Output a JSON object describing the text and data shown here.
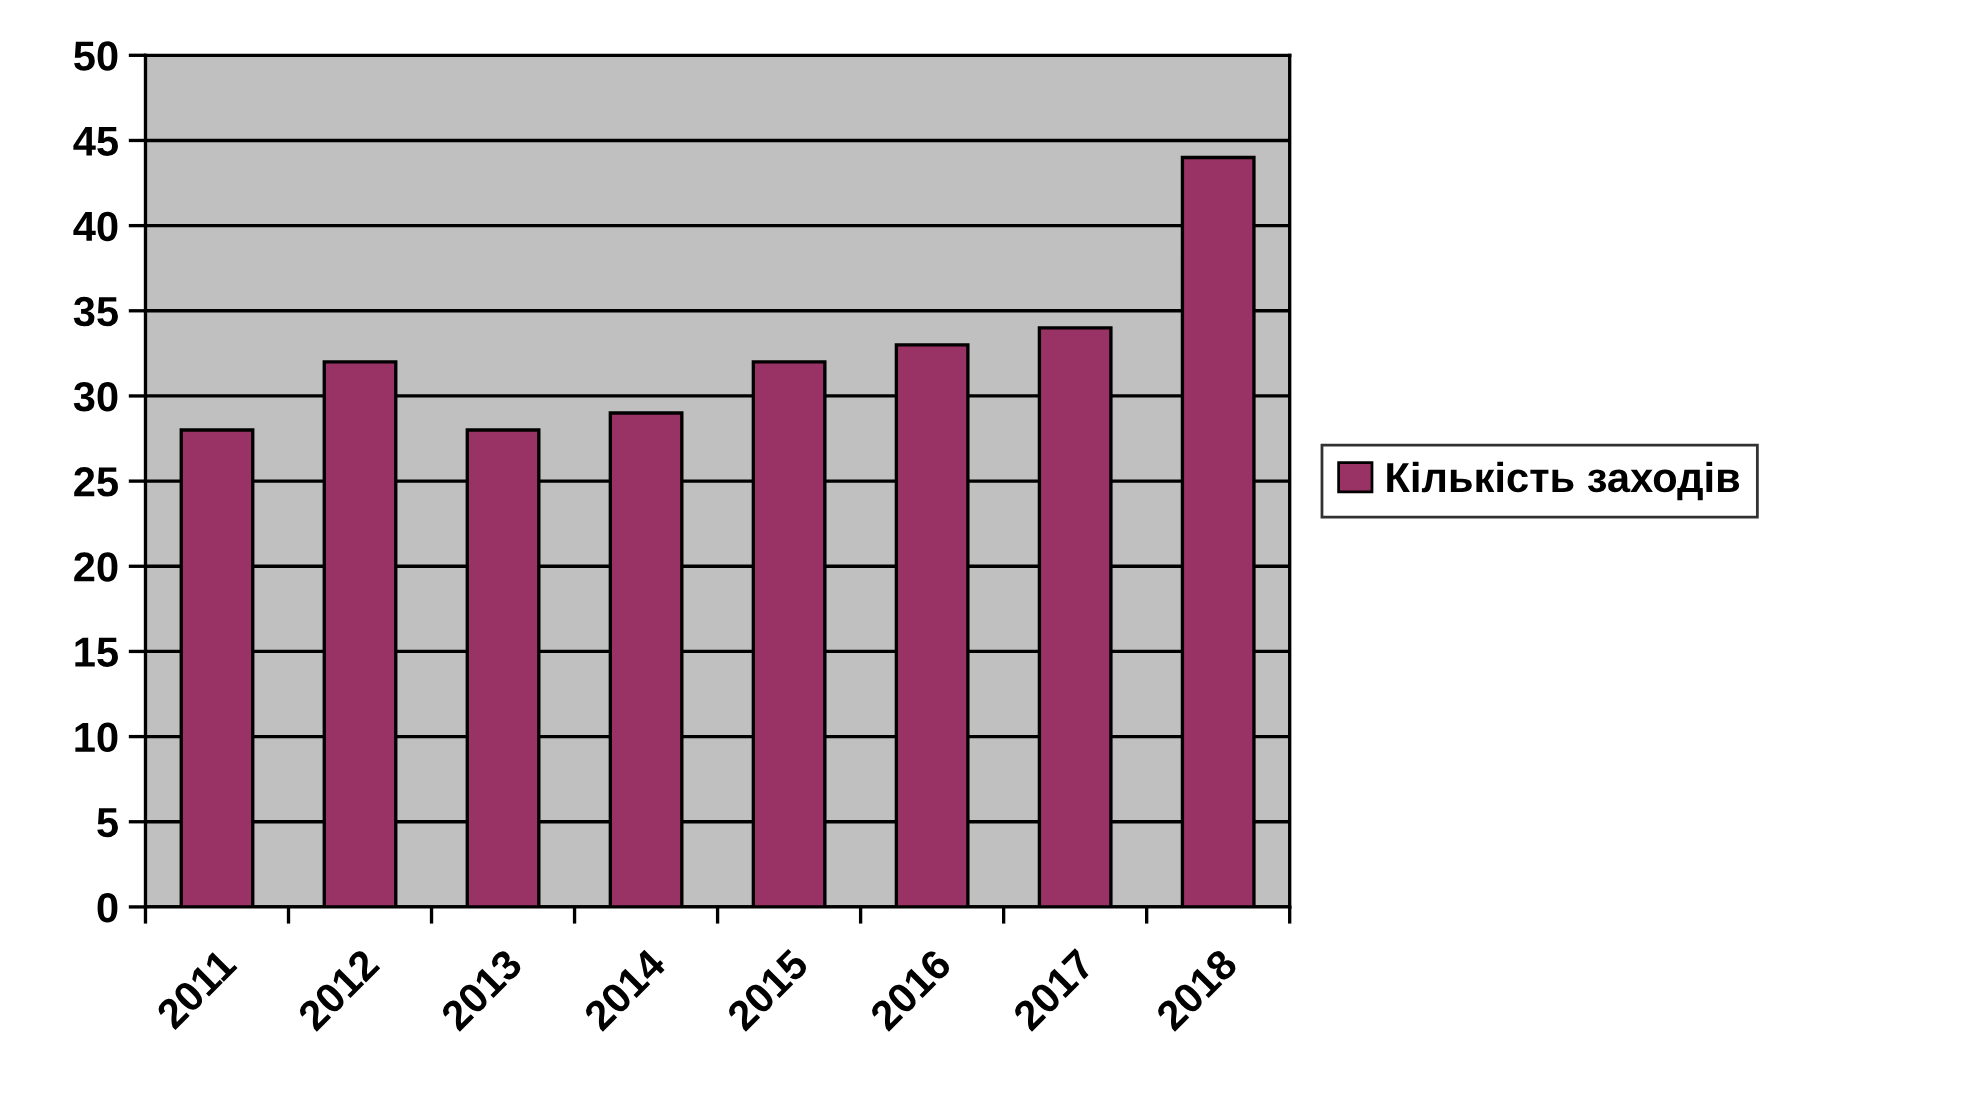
{
  "chart_data": {
    "type": "bar",
    "categories": [
      "2011",
      "2012",
      "2013",
      "2014",
      "2015",
      "2016",
      "2017",
      "2018"
    ],
    "series": [
      {
        "name": "Кількість заходів",
        "color": "#993366",
        "values": [
          28,
          32,
          28,
          29,
          32,
          33,
          34,
          44
        ]
      }
    ],
    "ylim": [
      0,
      50
    ],
    "yticks": [
      0,
      5,
      10,
      15,
      20,
      25,
      30,
      35,
      40,
      45,
      50
    ],
    "grid": "y",
    "legend": "right"
  }
}
